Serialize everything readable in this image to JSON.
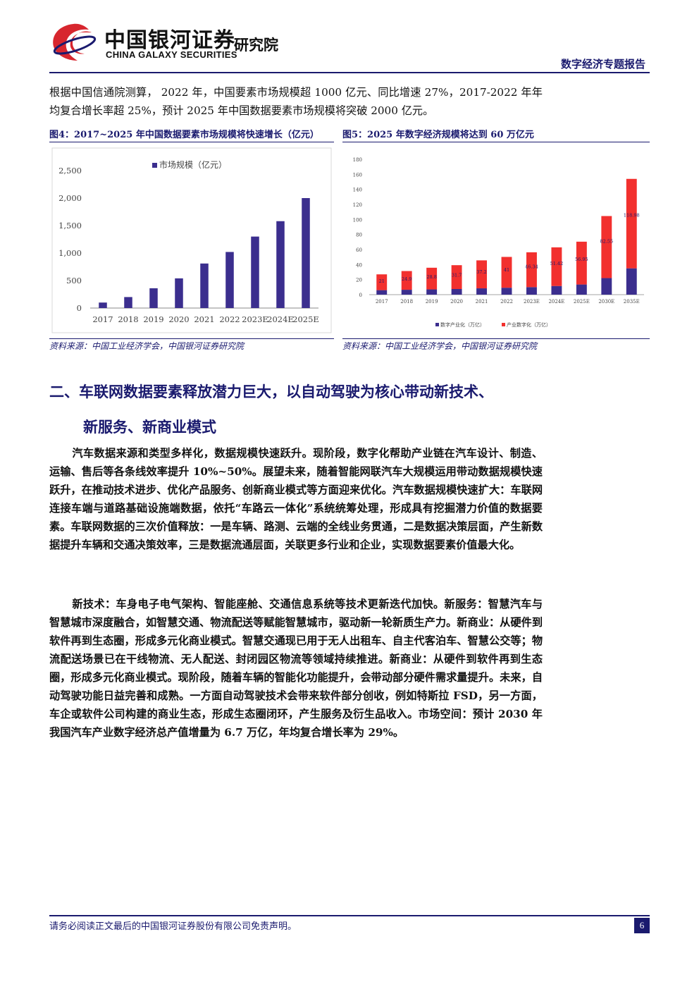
{
  "header": {
    "brand_cn": "中国银河证券",
    "brand_en": "CHINA GALAXY SECURITIES",
    "institute": "研究院",
    "report_type": "数字经济专题报告"
  },
  "intro_paragraph": "根据中国信通院测算， 2022 年，中国要素市场规模超 1000 亿元、同比增速 27%，2017-2022 年年均复合增长率超 25%，预计 2025 年中国数据要素市场规模将突破 2000 亿元。",
  "figure4": {
    "title": "图4：2017~2025 年中国数据要素市场规模将快速增长（亿元）",
    "source": "资料来源：中国工业经济学会，中国银河证券研究院"
  },
  "figure5": {
    "title": "图5：2025 年数字经济规模将达到 60 万亿元",
    "source": "资料来源：中国工业经济学会，中国银河证券研究院"
  },
  "chart_data": [
    {
      "type": "bar",
      "categories": [
        "2017",
        "2018",
        "2019",
        "2020",
        "2021",
        "2022",
        "2023E",
        "2024E",
        "2025E"
      ],
      "series": [
        {
          "name": "市场规模（亿元）",
          "values": [
            100,
            200,
            360,
            540,
            810,
            1020,
            1300,
            1580,
            2000
          ],
          "color": "#3b2e8e"
        }
      ],
      "ylim": [
        0,
        2500
      ],
      "yticks": [
        "0",
        "500",
        "1,000",
        "1,500",
        "2,000",
        "2,500"
      ],
      "ytick_values": [
        0,
        500,
        1000,
        1500,
        2000,
        2500
      ],
      "legend": "top"
    },
    {
      "type": "bar",
      "stacked": true,
      "categories": [
        "2017",
        "2018",
        "2019",
        "2020",
        "2021",
        "2022",
        "2023E",
        "2024E",
        "2025E",
        "2030E",
        "2035E"
      ],
      "series": [
        {
          "name": "数字产业化（万亿）",
          "values": [
            6,
            6.5,
            7,
            7.5,
            8.4,
            9.2,
            10,
            11.5,
            13.5,
            22,
            35
          ],
          "color": "#3b2e8e"
        },
        {
          "name": "产业数字化（万亿）",
          "values": [
            21,
            24.9,
            28.8,
            31.7,
            37.2,
            41,
            46.34,
            51.42,
            56.95,
            82.55,
            118.98
          ],
          "color": "#f2302e",
          "labels": [
            "21",
            "24.9",
            "28.8",
            "31.7",
            "37.2",
            "41",
            "46.34",
            "51.42",
            "56.95",
            "82.55",
            "118.98"
          ]
        }
      ],
      "ylim": [
        0,
        180
      ],
      "yticks": [
        "0",
        "20",
        "40",
        "60",
        "80",
        "100",
        "120",
        "140",
        "160",
        "180"
      ],
      "ytick_values": [
        0,
        20,
        40,
        60,
        80,
        100,
        120,
        140,
        160,
        180
      ],
      "legend": "bottom"
    }
  ],
  "section2": {
    "title_line1": "二、车联网数据要素释放潜力巨大，以自动驾驶为核心带动新技术、",
    "title_line2": "新服务、新商业模式",
    "para1": "汽车数据来源和类型多样化，数据规模快速跃升。现阶段，数字化帮助产业链在汽车设计、制造、运输、售后等各条线效率提升 10%~50%。展望未来，随着智能网联汽车大规模运用带动数据规模快速跃升，在推动技术进步、优化产品服务、创新商业模式等方面迎来优化。汽车数据规模快速扩大：车联网连接车端与道路基础设施端数据，依托“车路云一体化”系统统筹处理，形成具有挖掘潜力价值的数据要素。车联网数据的三次价值释放：一是车辆、路测、云端的全线业务贯通，二是数据决策层面，产生新数据提升车辆和交通决策效率，三是数据流通层面，关联更多行业和企业，实现数据要素价值最大化。",
    "para2": "新技术：车身电子电气架构、智能座舱、交通信息系统等技术更新迭代加快。新服务：智慧汽车与智慧城市深度融合，如智慧交通、物流配送等赋能智慧城市，驱动新一轮新质生产力。新商业：从硬件到软件再到生态圈，形成多元化商业模式。智慧交通现已用于无人出租车、自主代客泊车、智慧公交等；物流配送场景已在干线物流、无人配送、封闭园区物流等领域持续推进。新商业：从硬件到软件再到生态圈，形成多元化商业模式。现阶段，随着车辆的智能化功能提升，会带动部分硬件需求量提升。未来，自动驾驶功能日益完善和成熟。一方面自动驾驶技术会带来软件部分创收，例如特斯拉 FSD，另一方面，车企或软件公司构建的商业生态，形成生态圈闭环，产生服务及衍生品收入。市场空间：预计 2030 年我国汽车产业数字经济总产值增量为 6.7 万亿，年均复合增长率为 29%。"
  },
  "footer": {
    "disclaimer": "请务必阅读正文最后的中国银河证券股份有限公司免责声明。",
    "page": "6"
  },
  "colors": {
    "brand": "#1a1a6e",
    "logo_red": "#d7262e",
    "bar_purple": "#3b2e8e",
    "bar_red": "#f2302e"
  }
}
